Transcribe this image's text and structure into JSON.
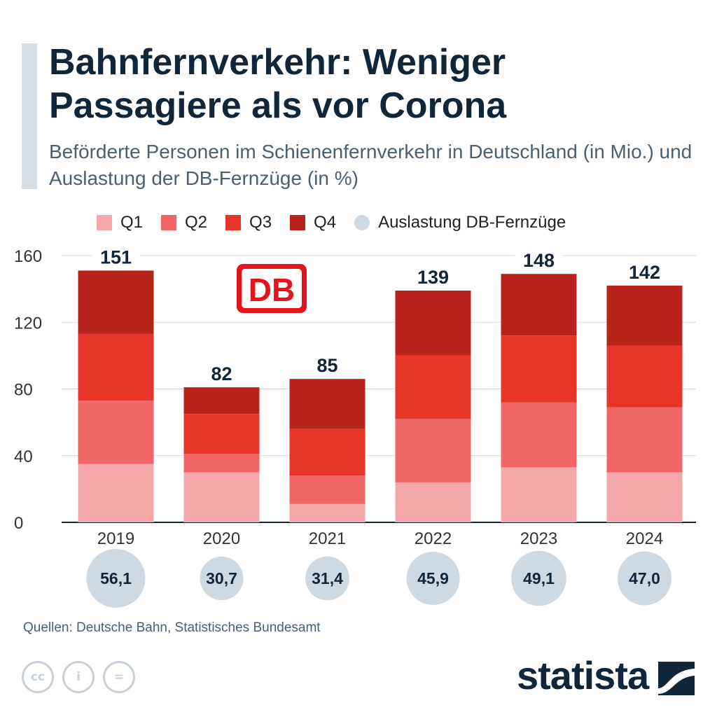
{
  "title": "Bahnfernverkehr: Weniger Passagiere als vor Corona",
  "subtitle": "Beförderte Personen im Schienenfernverkehr in Deutschland (in Mio.) und Auslastung der DB-Fernzüge (in %)",
  "legend": [
    {
      "label": "Q1",
      "color": "#f5a8aa",
      "shape": "square"
    },
    {
      "label": "Q2",
      "color": "#f06566",
      "shape": "square"
    },
    {
      "label": "Q3",
      "color": "#e8352a",
      "shape": "square"
    },
    {
      "label": "Q4",
      "color": "#b8231c",
      "shape": "square"
    },
    {
      "label": "Auslastung DB-Fernzüge",
      "color": "#cfd9e1",
      "shape": "circle"
    }
  ],
  "logo": {
    "text": "DB",
    "color": "#e3141c"
  },
  "chart_data": {
    "type": "bar",
    "stacked": true,
    "categories": [
      "2019",
      "2020",
      "2021",
      "2022",
      "2023",
      "2024"
    ],
    "series": [
      {
        "name": "Q1",
        "color": "#f5a8aa",
        "values": [
          35,
          30,
          11,
          24,
          33,
          30
        ]
      },
      {
        "name": "Q2",
        "color": "#f06566",
        "values": [
          38,
          11,
          17,
          38,
          39,
          39
        ]
      },
      {
        "name": "Q3",
        "color": "#e8352a",
        "values": [
          40,
          24,
          28,
          38,
          40,
          37
        ]
      },
      {
        "name": "Q4",
        "color": "#b8231c",
        "values": [
          38,
          16,
          30,
          39,
          37,
          36
        ]
      }
    ],
    "totals": [
      151,
      82,
      85,
      139,
      148,
      142
    ],
    "auslastung": {
      "name": "Auslastung DB-Fernzüge",
      "values": [
        56.1,
        30.7,
        31.4,
        45.9,
        49.1,
        47.0
      ],
      "labels": [
        "56,1",
        "30,7",
        "31,4",
        "45,9",
        "49,1",
        "47,0"
      ],
      "color": "#cfd9e1"
    },
    "yticks": [
      0,
      40,
      80,
      120,
      160
    ],
    "ylim": [
      0,
      160
    ],
    "grid": true
  },
  "source": "Quellen: Deutsche Bahn, Statistisches Bundesamt",
  "cc_icons": [
    {
      "name": "cc-icon",
      "glyph": "cc"
    },
    {
      "name": "by-icon",
      "glyph": "i"
    },
    {
      "name": "nd-icon",
      "glyph": "="
    }
  ],
  "brand": "statista"
}
